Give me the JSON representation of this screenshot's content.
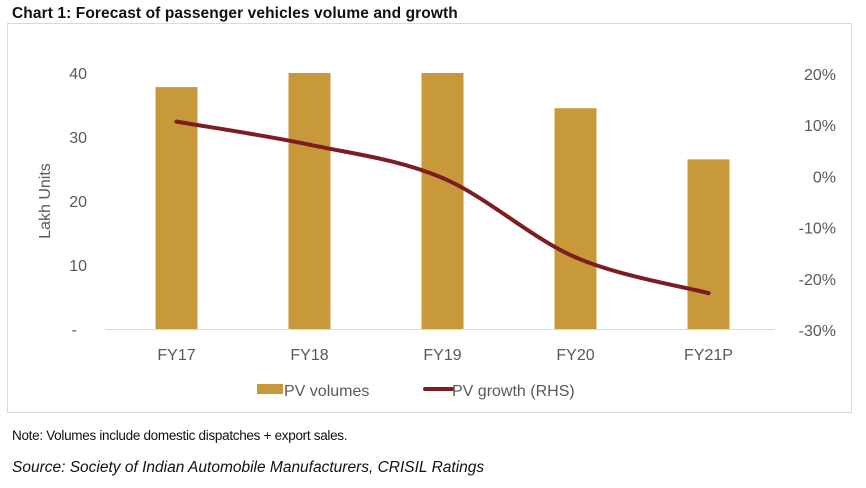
{
  "title": "Chart 1: Forecast of passenger vehicles volume and growth",
  "note": "Note: Volumes include domestic dispatches + export sales.",
  "source": "Source: Society of Indian Automobile Manufacturers,  CRISIL Ratings",
  "colors": {
    "bar": "#C8993A",
    "line": "#7B1E22",
    "axis_text": "#595959",
    "gridline": "#D9D9D9"
  },
  "chart_data": {
    "type": "bar",
    "title": "Chart 1: Forecast of passenger vehicles volume and growth",
    "categories": [
      "FY17",
      "FY18",
      "FY19",
      "FY20",
      "FY21P"
    ],
    "series": [
      {
        "name": "PV volumes",
        "type": "bar",
        "axis": "left",
        "values": [
          37.8,
          40.0,
          40.0,
          34.5,
          26.5
        ]
      },
      {
        "name": "PV growth (RHS)",
        "type": "line",
        "axis": "right",
        "values": [
          10.5,
          6.0,
          -0.5,
          -16.0,
          -23.0
        ]
      }
    ],
    "ylabel": "Lakh Units",
    "ylim": [
      0,
      40
    ],
    "yticks": [
      0,
      10,
      20,
      30,
      40
    ],
    "ytick_labels": [
      "-",
      "10",
      "20",
      "30",
      "40"
    ],
    "y2label": "",
    "y2lim": [
      -30,
      20
    ],
    "y2ticks": [
      -30,
      -20,
      -10,
      0,
      10,
      20
    ],
    "y2tick_labels": [
      "-30%",
      "-20%",
      "-10%",
      "0%",
      "10%",
      "20%"
    ],
    "xlabel": "",
    "grid": false,
    "legend": "bottom",
    "legend_entries": [
      "PV volumes",
      "PV growth (RHS)"
    ]
  }
}
